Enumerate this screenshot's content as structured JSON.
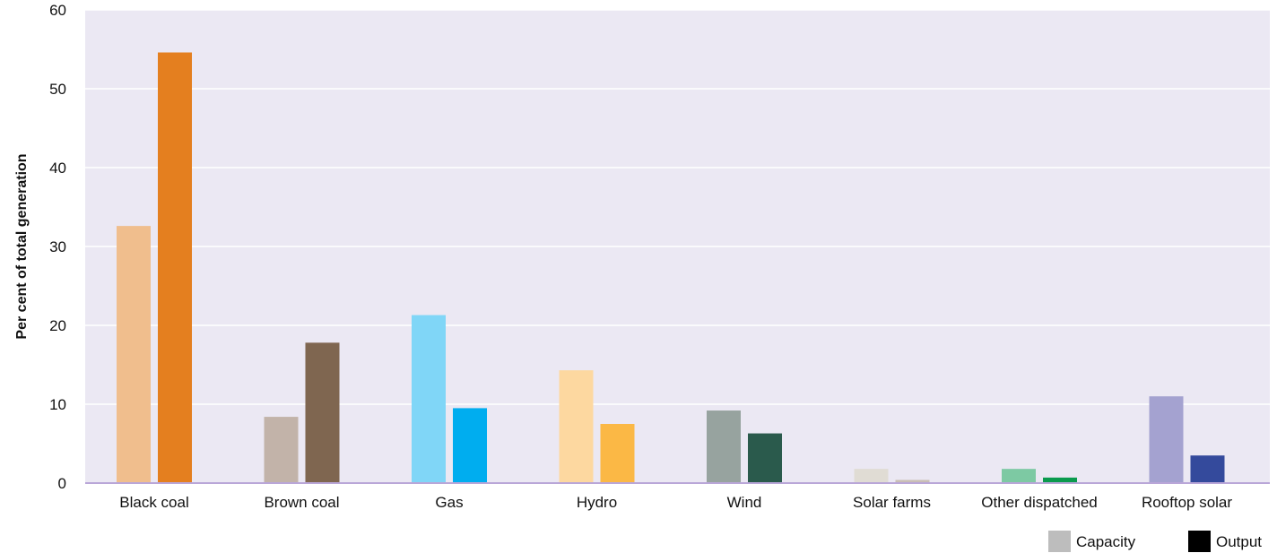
{
  "chart_data": {
    "type": "bar",
    "title": "",
    "xlabel": "",
    "ylabel": "Per cent of total generation",
    "ylim": [
      0,
      60
    ],
    "yticks": [
      0,
      10,
      20,
      30,
      40,
      50,
      60
    ],
    "categories": [
      "Black coal",
      "Brown coal",
      "Gas",
      "Hydro",
      "Wind",
      "Solar farms",
      "Other dispatched",
      "Rooftop solar"
    ],
    "series": [
      {
        "name": "Capacity",
        "values": [
          32.6,
          8.4,
          21.3,
          14.3,
          9.2,
          1.8,
          1.8,
          11.0
        ],
        "colors": [
          "#f0be8d",
          "#c2b3a9",
          "#80d6f7",
          "#fdd8a0",
          "#97a39f",
          "#e0dcd4",
          "#7dc9a3",
          "#a4a2d0"
        ]
      },
      {
        "name": "Output",
        "values": [
          54.6,
          17.8,
          9.5,
          7.5,
          6.3,
          0.4,
          0.7,
          3.5
        ],
        "colors": [
          "#e47f1f",
          "#7f6650",
          "#00adef",
          "#fbb845",
          "#2a5a4c",
          "#c9beb5",
          "#0a9a4d",
          "#344a9c"
        ]
      }
    ],
    "legend": {
      "position": "bottom-right",
      "items": [
        {
          "label": "Capacity",
          "color": "#bdbdbd"
        },
        {
          "label": "Output",
          "color": "#000000"
        }
      ]
    },
    "grid": true,
    "plot_background": "#ebe8f3",
    "gridline_color": "#ffffff",
    "axis_color": "#b9a6d8"
  }
}
